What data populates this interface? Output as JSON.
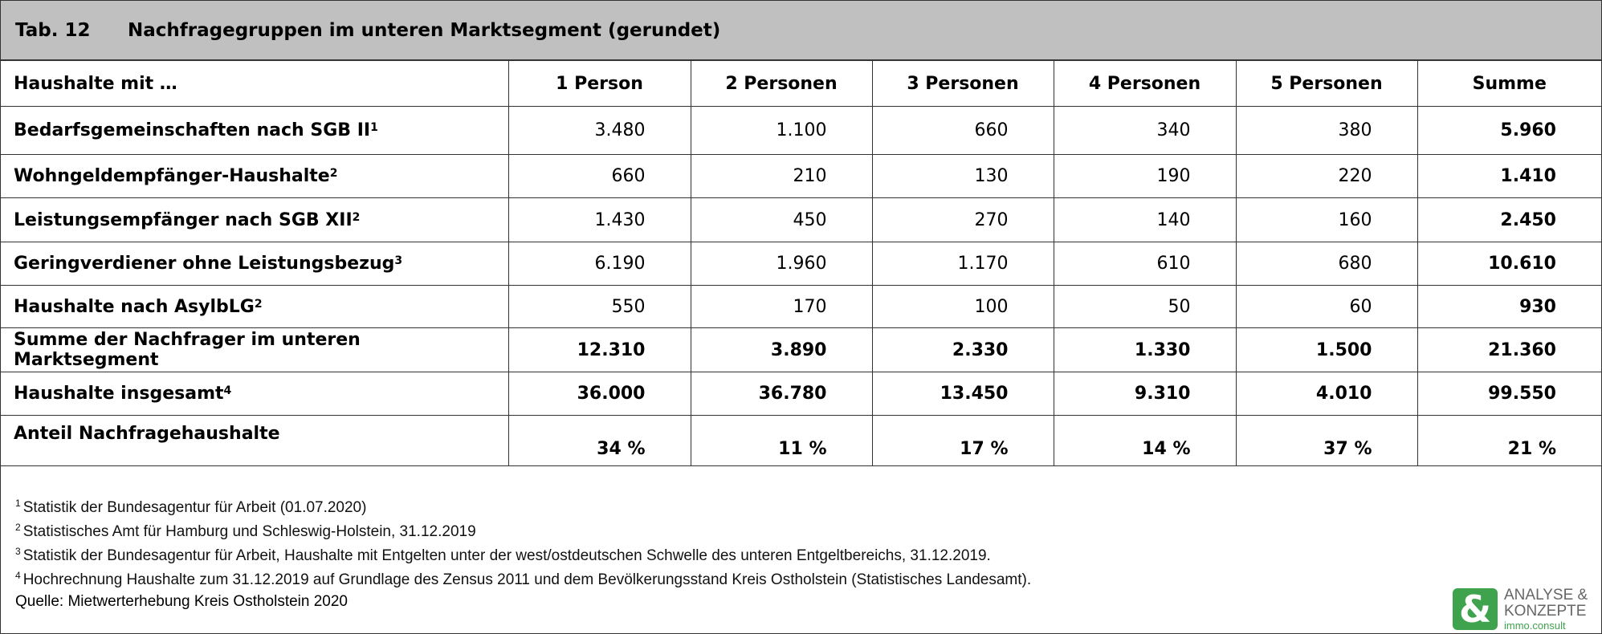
{
  "header": {
    "number": "Tab. 12",
    "title": "Nachfragegruppen im unteren Marktsegment (gerundet)"
  },
  "table": {
    "columns": [
      "Haushalte mit …",
      "1 Person",
      "2 Personen",
      "3 Personen",
      "4 Personen",
      "5 Personen",
      "Summe"
    ],
    "rows": [
      {
        "label": "Bedarfsgemeinschaften nach SGB II",
        "note": "1",
        "values": [
          "3.480",
          "1.100",
          "660",
          "340",
          "380",
          "5.960"
        ]
      },
      {
        "label": "Wohngeldempfänger-Haushalte",
        "note": "2",
        "values": [
          "660",
          "210",
          "130",
          "190",
          "220",
          "1.410"
        ]
      },
      {
        "label": "Leistungsempfänger nach SGB XII",
        "note": "2",
        "values": [
          "1.430",
          "450",
          "270",
          "140",
          "160",
          "2.450"
        ]
      },
      {
        "label": "Geringverdiener ohne Leistungsbezug",
        "note": "3",
        "values": [
          "6.190",
          "1.960",
          "1.170",
          "610",
          "680",
          "10.610"
        ]
      },
      {
        "label": "Haushalte nach AsylbLG",
        "note": "2",
        "values": [
          "550",
          "170",
          "100",
          "50",
          "60",
          "930"
        ]
      },
      {
        "label": "Summe der Nachfrager im unteren Marktsegment",
        "values": [
          "12.310",
          "3.890",
          "2.330",
          "1.330",
          "1.500",
          "21.360"
        ]
      },
      {
        "label": "Haushalte insgesamt",
        "note": "4",
        "values": [
          "36.000",
          "36.780",
          "13.450",
          "9.310",
          "4.010",
          "99.550"
        ]
      },
      {
        "label": "Anteil Nachfragehaushalte",
        "values": [
          "34 %",
          "11 %",
          "17 %",
          "14 %",
          "37 %",
          "21 %"
        ]
      }
    ]
  },
  "footnotes": [
    {
      "number": "1",
      "text": "Statistik der Bundesagentur für Arbeit (01.07.2020)"
    },
    {
      "number": "2",
      "text": "Statistisches Amt für Hamburg und Schleswig-Holstein, 31.12.2019"
    },
    {
      "number": "3",
      "text": "Statistik der Bundesagentur für Arbeit, Haushalte mit Entgelten unter der west/ostdeutschen Schwelle des unteren Entgeltbereichs, 31.12.2019."
    },
    {
      "number": "4",
      "text": "Hochrechnung Haushalte zum 31.12.2019 auf Grundlage des Zensus 2011 und dem Bevölkerungsstand Kreis Ostholstein (Statistisches Landesamt)."
    }
  ],
  "source": "Quelle: Mietwerterhebung Kreis Ostholstein 2020",
  "logo": {
    "line1": "ANALYSE &",
    "line2": "KONZEPTE",
    "line3": "immo.consult"
  }
}
